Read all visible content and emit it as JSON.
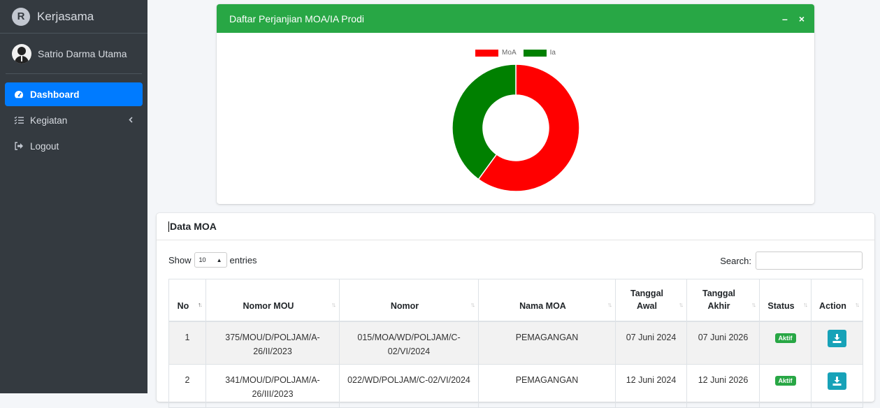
{
  "brand": {
    "title": "Kerjasama",
    "logo_letter": "R"
  },
  "user": {
    "name": "Satrio Darma Utama"
  },
  "nav": [
    {
      "label": "Dashboard",
      "icon": "tachometer-icon",
      "active": true
    },
    {
      "label": "Kegiatan",
      "icon": "tasks-icon",
      "active": false
    },
    {
      "label": "Logout",
      "icon": "sign-out-icon",
      "active": false
    }
  ],
  "chart_card": {
    "title": "Daftar Perjanjian MOA/IA Prodi",
    "minimize": "–",
    "close": "×"
  },
  "chart_data": {
    "type": "pie",
    "donut": true,
    "legend_position": "top",
    "series": [
      {
        "name": "MoA",
        "value": 60,
        "color": "#ff0000"
      },
      {
        "name": "Ia",
        "value": 40,
        "color": "#008000"
      }
    ]
  },
  "table_card": {
    "title": "Data MOA",
    "show_label": "Show",
    "entries_value": "10",
    "entries_label": "entries",
    "search_label": "Search:",
    "columns": [
      "No",
      "Nomor MOU",
      "Nomor",
      "Nama MOA",
      "Tanggal Awal",
      "Tanggal Akhir",
      "Status",
      "Action"
    ],
    "rows": [
      {
        "no": "1",
        "nomor_mou": "375/MOU/D/POLJAM/A-26/II/2023",
        "nomor": "015/MOA/WD/POLJAM/C-02/VI/2024",
        "nama": "PEMAGANGAN",
        "awal": "07 Juni 2024",
        "akhir": "07 Juni 2026",
        "status": "Aktif"
      },
      {
        "no": "2",
        "nomor_mou": "341/MOU/D/POLJAM/A-26/III/2023",
        "nomor": "022/WD/POLJAM/C-02/VI/2024",
        "nama": "PEMAGANGAN",
        "awal": "12 Juni 2024",
        "akhir": "12 Juni 2026",
        "status": "Aktif"
      }
    ]
  }
}
